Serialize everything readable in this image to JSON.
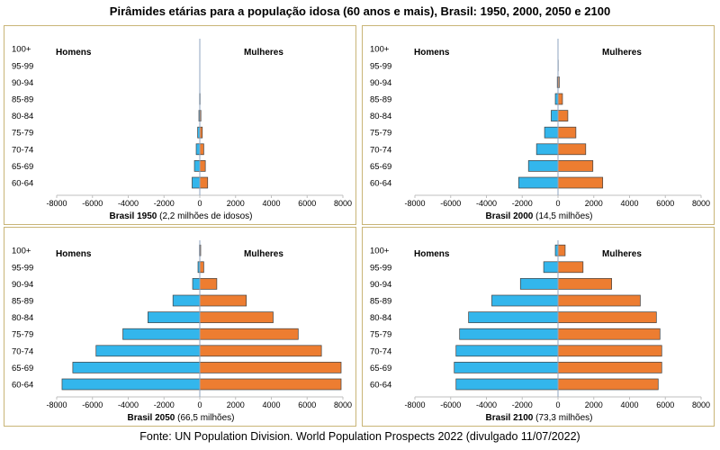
{
  "title": "Pirâmides etárias para a população idosa (60 anos e mais), Brasil: 1950, 2000, 2050 e 2100",
  "source": "Fonte: UN Population Division. World Population Prospects 2022 (divulgado 11/07/2022)",
  "labels": {
    "men": "Homens",
    "women": "Mulheres"
  },
  "colors": {
    "men": "#33b6ec",
    "women": "#ed7d31"
  },
  "chart_data": [
    {
      "type": "bar",
      "orientation": "horizontal",
      "year": "Brasil 1950",
      "subtitle": "(2,2 milhões de idosos)",
      "categories": [
        "60-64",
        "65-69",
        "70-74",
        "75-79",
        "80-84",
        "85-89",
        "90-94",
        "95-99",
        "100+"
      ],
      "series": [
        {
          "name": "Homens",
          "values": [
            -430,
            -300,
            -200,
            -120,
            -50,
            -15,
            -4,
            -1,
            0
          ]
        },
        {
          "name": "Mulheres",
          "values": [
            440,
            310,
            220,
            140,
            60,
            20,
            5,
            1,
            0
          ]
        }
      ],
      "xlim": [
        -8000,
        8000
      ],
      "xticks": [
        -8000,
        -6000,
        -4000,
        -2000,
        0,
        2000,
        4000,
        6000,
        8000
      ]
    },
    {
      "type": "bar",
      "orientation": "horizontal",
      "year": "Brasil 2000",
      "subtitle": "(14,5 milhões)",
      "categories": [
        "60-64",
        "65-69",
        "70-74",
        "75-79",
        "80-84",
        "85-89",
        "90-94",
        "95-99",
        "100+"
      ],
      "series": [
        {
          "name": "Homens",
          "values": [
            -2200,
            -1650,
            -1200,
            -750,
            -380,
            -150,
            -40,
            -8,
            -1
          ]
        },
        {
          "name": "Mulheres",
          "values": [
            2500,
            1950,
            1550,
            1000,
            550,
            250,
            70,
            15,
            2
          ]
        }
      ],
      "xlim": [
        -8000,
        8000
      ],
      "xticks": [
        -8000,
        -6000,
        -4000,
        -2000,
        0,
        2000,
        4000,
        6000,
        8000
      ]
    },
    {
      "type": "bar",
      "orientation": "horizontal",
      "year": "Brasil 2050",
      "subtitle": "(66,5 milhões)",
      "categories": [
        "60-64",
        "65-69",
        "70-74",
        "75-79",
        "80-84",
        "85-89",
        "90-94",
        "95-99",
        "100+"
      ],
      "series": [
        {
          "name": "Homens",
          "values": [
            -7700,
            -7100,
            -5800,
            -4300,
            -2900,
            -1500,
            -400,
            -100,
            -20
          ]
        },
        {
          "name": "Mulheres",
          "values": [
            7900,
            7900,
            6800,
            5500,
            4100,
            2600,
            950,
            220,
            50
          ]
        }
      ],
      "xlim": [
        -8000,
        8000
      ],
      "xticks": [
        -8000,
        -6000,
        -4000,
        -2000,
        0,
        2000,
        4000,
        6000,
        8000
      ]
    },
    {
      "type": "bar",
      "orientation": "horizontal",
      "year": "Brasil 2100",
      "subtitle": "(73,3 milhões)",
      "categories": [
        "60-64",
        "65-69",
        "70-74",
        "75-79",
        "80-84",
        "85-89",
        "90-94",
        "95-99",
        "100+"
      ],
      "series": [
        {
          "name": "Homens",
          "values": [
            -5700,
            -5800,
            -5700,
            -5500,
            -5000,
            -3700,
            -2100,
            -800,
            -150
          ]
        },
        {
          "name": "Mulheres",
          "values": [
            5600,
            5800,
            5800,
            5700,
            5500,
            4600,
            3000,
            1400,
            400
          ]
        }
      ],
      "xlim": [
        -8000,
        8000
      ],
      "xticks": [
        -8000,
        -6000,
        -4000,
        -2000,
        0,
        2000,
        4000,
        6000,
        8000
      ]
    }
  ]
}
